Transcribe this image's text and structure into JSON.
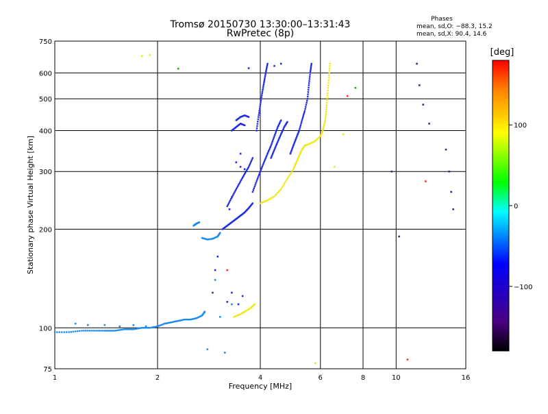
{
  "chart_data": {
    "type": "scatter",
    "title": "Tromsø 20150730 13:30:00–13:31:43",
    "subtitle": "RwPretec (8p)",
    "stats": {
      "heading": "Phases",
      "line_o": "mean, sd,O: −88.3, 15.2",
      "line_x": "mean, sd,X:  90.4, 14.6"
    },
    "xlabel": "Frequency [MHz]",
    "ylabel": "Stationary phase Virtual Height [km]",
    "x_scale": "log",
    "y_scale": "log",
    "xlim": [
      1,
      16
    ],
    "ylim": [
      75,
      750
    ],
    "x_ticks": [
      {
        "v": 1,
        "label": "1"
      },
      {
        "v": 2,
        "label": "2"
      },
      {
        "v": 4,
        "label": "4"
      },
      {
        "v": 6,
        "label": "6"
      },
      {
        "v": 8,
        "label": "8"
      },
      {
        "v": 10,
        "label": "10"
      },
      {
        "v": 16,
        "label": "16"
      }
    ],
    "y_ticks": [
      {
        "v": 75,
        "label": "75"
      },
      {
        "v": 100,
        "label": "100"
      },
      {
        "v": 200,
        "label": "200"
      },
      {
        "v": 300,
        "label": "300"
      },
      {
        "v": 400,
        "label": "400"
      },
      {
        "v": 500,
        "label": "500"
      },
      {
        "v": 600,
        "label": "600"
      },
      {
        "v": 750,
        "label": "750"
      }
    ],
    "grid": true,
    "colorbar": {
      "label": "[deg]",
      "range": [
        -180,
        180
      ],
      "ticks": [
        {
          "v": 100,
          "label": "100"
        },
        {
          "v": 0,
          "label": "0"
        },
        {
          "v": -100,
          "label": "−100"
        }
      ]
    },
    "series": [
      {
        "phase_color": "#1a8cf0",
        "segments": [
          [
            [
              1.0,
              97
            ],
            [
              1.1,
              97
            ],
            [
              1.2,
              98
            ],
            [
              1.3,
              98
            ],
            [
              1.4,
              98
            ],
            [
              1.5,
              98
            ],
            [
              1.6,
              99
            ],
            [
              1.7,
              99
            ],
            [
              1.8,
              100
            ],
            [
              1.9,
              100
            ],
            [
              2.0,
              101
            ],
            [
              2.1,
              103
            ],
            [
              2.2,
              104
            ],
            [
              2.3,
              105
            ],
            [
              2.4,
              106
            ],
            [
              2.5,
              106
            ],
            [
              2.6,
              107
            ],
            [
              2.7,
              109
            ],
            [
              2.75,
              112
            ]
          ],
          [
            [
              2.55,
              205
            ],
            [
              2.6,
              208
            ],
            [
              2.65,
              210
            ]
          ],
          [
            [
              2.7,
              188
            ],
            [
              2.8,
              186
            ],
            [
              2.9,
              187
            ],
            [
              3.0,
              190
            ],
            [
              3.05,
              195
            ]
          ]
        ],
        "points": [
          [
            1.15,
            103
          ],
          [
            1.25,
            102
          ],
          [
            1.4,
            102
          ],
          [
            1.55,
            101
          ],
          [
            1.7,
            102
          ],
          [
            1.85,
            101
          ],
          [
            2.8,
            86
          ],
          [
            3.15,
            84
          ],
          [
            2.95,
            140
          ],
          [
            3.3,
            118
          ],
          [
            3.05,
            108
          ]
        ]
      },
      {
        "phase_color": "#1f2fe0",
        "segments": [
          [
            [
              3.1,
              200
            ],
            [
              3.2,
              205
            ],
            [
              3.3,
              210
            ],
            [
              3.4,
              215
            ],
            [
              3.5,
              220
            ],
            [
              3.6,
              225
            ],
            [
              3.7,
              232
            ],
            [
              3.8,
              240
            ]
          ],
          [
            [
              3.2,
              235
            ],
            [
              3.3,
              250
            ],
            [
              3.4,
              265
            ],
            [
              3.5,
              280
            ],
            [
              3.6,
              295
            ],
            [
              3.7,
              310
            ],
            [
              3.8,
              330
            ]
          ],
          [
            [
              3.8,
              260
            ],
            [
              3.9,
              280
            ],
            [
              4.0,
              300
            ],
            [
              4.1,
              320
            ],
            [
              4.2,
              340
            ],
            [
              4.3,
              360
            ],
            [
              4.4,
              385
            ],
            [
              4.5,
              410
            ],
            [
              4.6,
              430
            ]
          ],
          [
            [
              3.9,
              400
            ],
            [
              3.95,
              440
            ],
            [
              4.0,
              480
            ],
            [
              4.05,
              520
            ],
            [
              4.1,
              560
            ],
            [
              4.15,
              600
            ],
            [
              4.2,
              640
            ]
          ],
          [
            [
              4.3,
              330
            ],
            [
              4.4,
              350
            ],
            [
              4.5,
              370
            ],
            [
              4.6,
              390
            ],
            [
              4.7,
              410
            ],
            [
              4.8,
              425
            ]
          ],
          [
            [
              4.9,
              340
            ],
            [
              5.0,
              360
            ],
            [
              5.1,
              380
            ],
            [
              5.2,
              400
            ],
            [
              5.3,
              430
            ],
            [
              5.4,
              460
            ],
            [
              5.5,
              500
            ],
            [
              5.55,
              550
            ],
            [
              5.6,
              600
            ],
            [
              5.65,
              640
            ]
          ],
          [
            [
              3.4,
              430
            ],
            [
              3.5,
              440
            ],
            [
              3.6,
              445
            ],
            [
              3.7,
              440
            ]
          ],
          [
            [
              3.3,
              400
            ],
            [
              3.4,
              410
            ],
            [
              3.5,
              420
            ],
            [
              3.6,
              415
            ]
          ]
        ],
        "points": [
          [
            3.4,
            320
          ],
          [
            3.5,
            310
          ],
          [
            3.6,
            305
          ],
          [
            3.5,
            340
          ],
          [
            3.3,
            250
          ],
          [
            3.25,
            230
          ],
          [
            4.4,
            630
          ],
          [
            4.6,
            640
          ],
          [
            3.7,
            620
          ],
          [
            3.2,
            120
          ],
          [
            3.3,
            128
          ],
          [
            3.45,
            118
          ],
          [
            3.55,
            125
          ],
          [
            2.9,
            128
          ],
          [
            2.95,
            150
          ],
          [
            3.0,
            165
          ]
        ]
      },
      {
        "phase_color": "#f0e81a",
        "segments": [
          [
            [
              4.0,
              240
            ],
            [
              4.2,
              245
            ],
            [
              4.4,
              252
            ],
            [
              4.6,
              265
            ],
            [
              4.8,
              285
            ],
            [
              5.0,
              305
            ],
            [
              5.1,
              320
            ],
            [
              5.2,
              335
            ],
            [
              5.3,
              350
            ],
            [
              5.4,
              360
            ],
            [
              5.6,
              365
            ],
            [
              5.8,
              372
            ],
            [
              6.0,
              385
            ],
            [
              6.1,
              400
            ],
            [
              6.2,
              430
            ],
            [
              6.25,
              470
            ],
            [
              6.3,
              520
            ],
            [
              6.35,
              580
            ],
            [
              6.4,
              640
            ]
          ],
          [
            [
              3.35,
              108
            ],
            [
              3.5,
              110
            ],
            [
              3.6,
              112
            ],
            [
              3.75,
              115
            ],
            [
              3.85,
              118
            ]
          ]
        ],
        "points": [
          [
            1.8,
            675
          ],
          [
            1.9,
            680
          ],
          [
            6.6,
            310
          ],
          [
            7.0,
            390
          ],
          [
            5.8,
            78
          ]
        ]
      },
      {
        "phase_color": "#2a2a90",
        "segments": [],
        "points": [
          [
            9.7,
            300
          ],
          [
            10.2,
            190
          ],
          [
            11.5,
            640
          ],
          [
            11.7,
            550
          ],
          [
            12.0,
            480
          ],
          [
            12.5,
            420
          ],
          [
            14.0,
            350
          ],
          [
            14.3,
            300
          ],
          [
            14.5,
            260
          ],
          [
            14.7,
            230
          ]
        ]
      },
      {
        "phase_color": "#ff3030",
        "segments": [],
        "points": [
          [
            7.2,
            510
          ],
          [
            3.2,
            150
          ],
          [
            10.8,
            80
          ],
          [
            12.2,
            280
          ]
        ]
      },
      {
        "phase_color": "#00c000",
        "segments": [],
        "points": [
          [
            2.3,
            618
          ],
          [
            7.6,
            540
          ]
        ]
      }
    ]
  }
}
